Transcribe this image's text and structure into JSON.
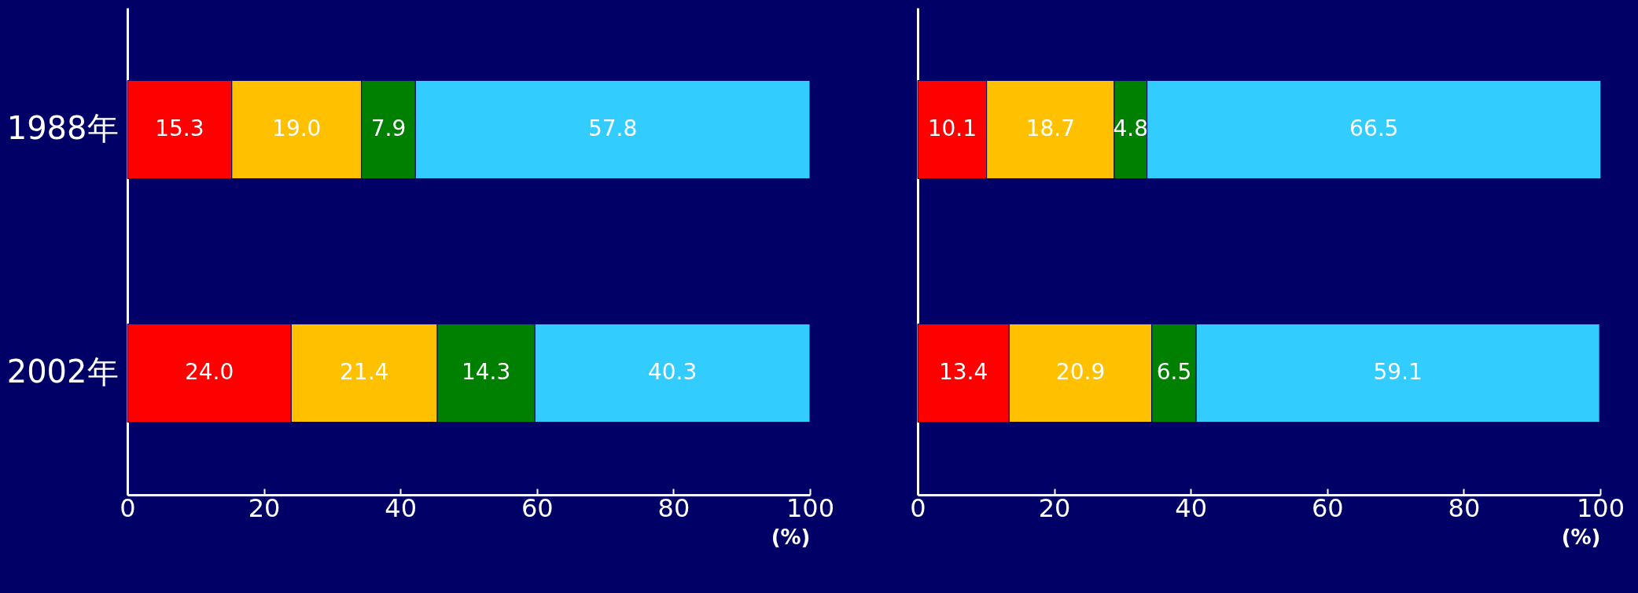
{
  "chart_data": [
    {
      "type": "bar",
      "orientation": "horizontal",
      "stacked": true,
      "categories": [
        "1988年",
        "2002年"
      ],
      "xlabel": "(%)",
      "xlim": [
        0,
        100
      ],
      "xticks": [
        0,
        20,
        40,
        60,
        80,
        100
      ],
      "grid": false,
      "series": [
        {
          "color": "#ff0000",
          "values": [
            15.3,
            24.0
          ],
          "value_labels": [
            "15.3",
            "24.0"
          ]
        },
        {
          "color": "#ffc000",
          "values": [
            19.0,
            21.4
          ],
          "value_labels": [
            "19.0",
            "21.4"
          ]
        },
        {
          "color": "#008000",
          "values": [
            7.9,
            14.3
          ],
          "value_labels": [
            "7.9",
            "14.3"
          ]
        },
        {
          "color": "#33ccff",
          "values": [
            57.8,
            40.3
          ],
          "value_labels": [
            "57.8",
            "40.3"
          ]
        }
      ]
    },
    {
      "type": "bar",
      "orientation": "horizontal",
      "stacked": true,
      "categories": [
        null,
        null
      ],
      "xlabel": "(%)",
      "xlim": [
        0,
        100
      ],
      "xticks": [
        0,
        20,
        40,
        60,
        80,
        100
      ],
      "grid": false,
      "tick_labels": "x",
      "series": [
        {
          "color": "#ff0000",
          "values": [
            10.1,
            13.4
          ],
          "value_labels": [
            "10.1",
            "13.4"
          ]
        },
        {
          "color": "#ffc000",
          "values": [
            18.7,
            20.9
          ],
          "value_labels": [
            "18.7",
            "20.9"
          ]
        },
        {
          "color": "#008000",
          "values": [
            4.8,
            6.5
          ],
          "value_labels": [
            "4.8",
            "6.5"
          ]
        },
        {
          "color": "#33ccff",
          "values": [
            66.5,
            59.1
          ],
          "value_labels": [
            "66.5",
            "59.1"
          ]
        }
      ]
    }
  ]
}
